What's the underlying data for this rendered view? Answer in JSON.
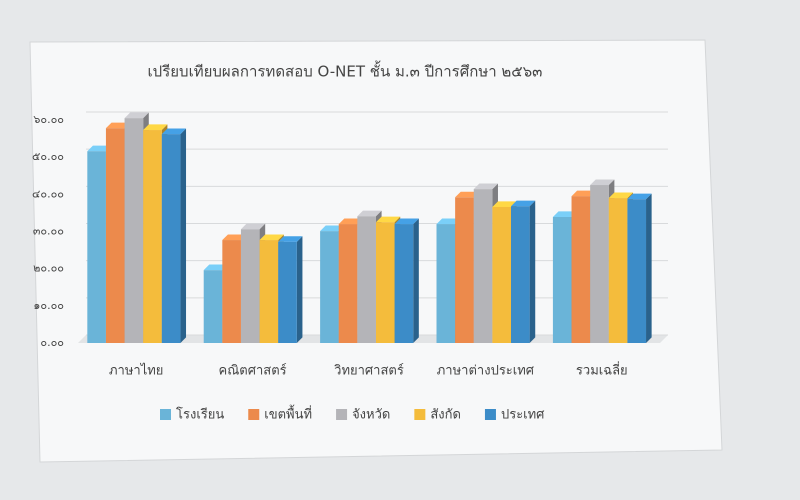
{
  "chart_data": {
    "type": "bar3d",
    "title": "เปรียบเทียบผลการทดสอบ O-NET ชั้น ม.๓ ปีการศึกษา ๒๕๖๓",
    "categories": [
      "ภาษาไทย",
      "คณิตศาสตร์",
      "วิทยาศาสตร์",
      "ภาษาต่างประเทศ",
      "รวมเฉลี่ย"
    ],
    "series": [
      {
        "name": "โรงเรียน",
        "color": "#6ab4d8",
        "values": [
          51.6,
          19.6,
          30.1,
          32.0,
          33.9
        ]
      },
      {
        "name": "เขตพื้นที่",
        "color": "#ec8a4c",
        "values": [
          57.8,
          27.7,
          32.0,
          39.2,
          39.5
        ]
      },
      {
        "name": "จังหวัด",
        "color": "#b4b4b8",
        "values": [
          60.5,
          30.6,
          34.1,
          41.4,
          42.5
        ]
      },
      {
        "name": "สังกัด",
        "color": "#f4bc3c",
        "values": [
          57.3,
          27.7,
          32.5,
          36.6,
          39.0
        ]
      },
      {
        "name": "ประเทศ",
        "color": "#3c8cc8",
        "values": [
          56.2,
          27.2,
          32.0,
          36.8,
          38.7
        ]
      }
    ],
    "ylim": [
      0,
      60
    ],
    "yticks": [
      {
        "value": 0,
        "label": "๐.๐๐"
      },
      {
        "value": 10,
        "label": "๑๐.๐๐"
      },
      {
        "value": 20,
        "label": "๒๐.๐๐"
      },
      {
        "value": 30,
        "label": "๓๐.๐๐"
      },
      {
        "value": 40,
        "label": "๔๐.๐๐"
      },
      {
        "value": 50,
        "label": "๕๐.๐๐"
      },
      {
        "value": 60,
        "label": "๖๐.๐๐"
      }
    ],
    "grid": true
  }
}
